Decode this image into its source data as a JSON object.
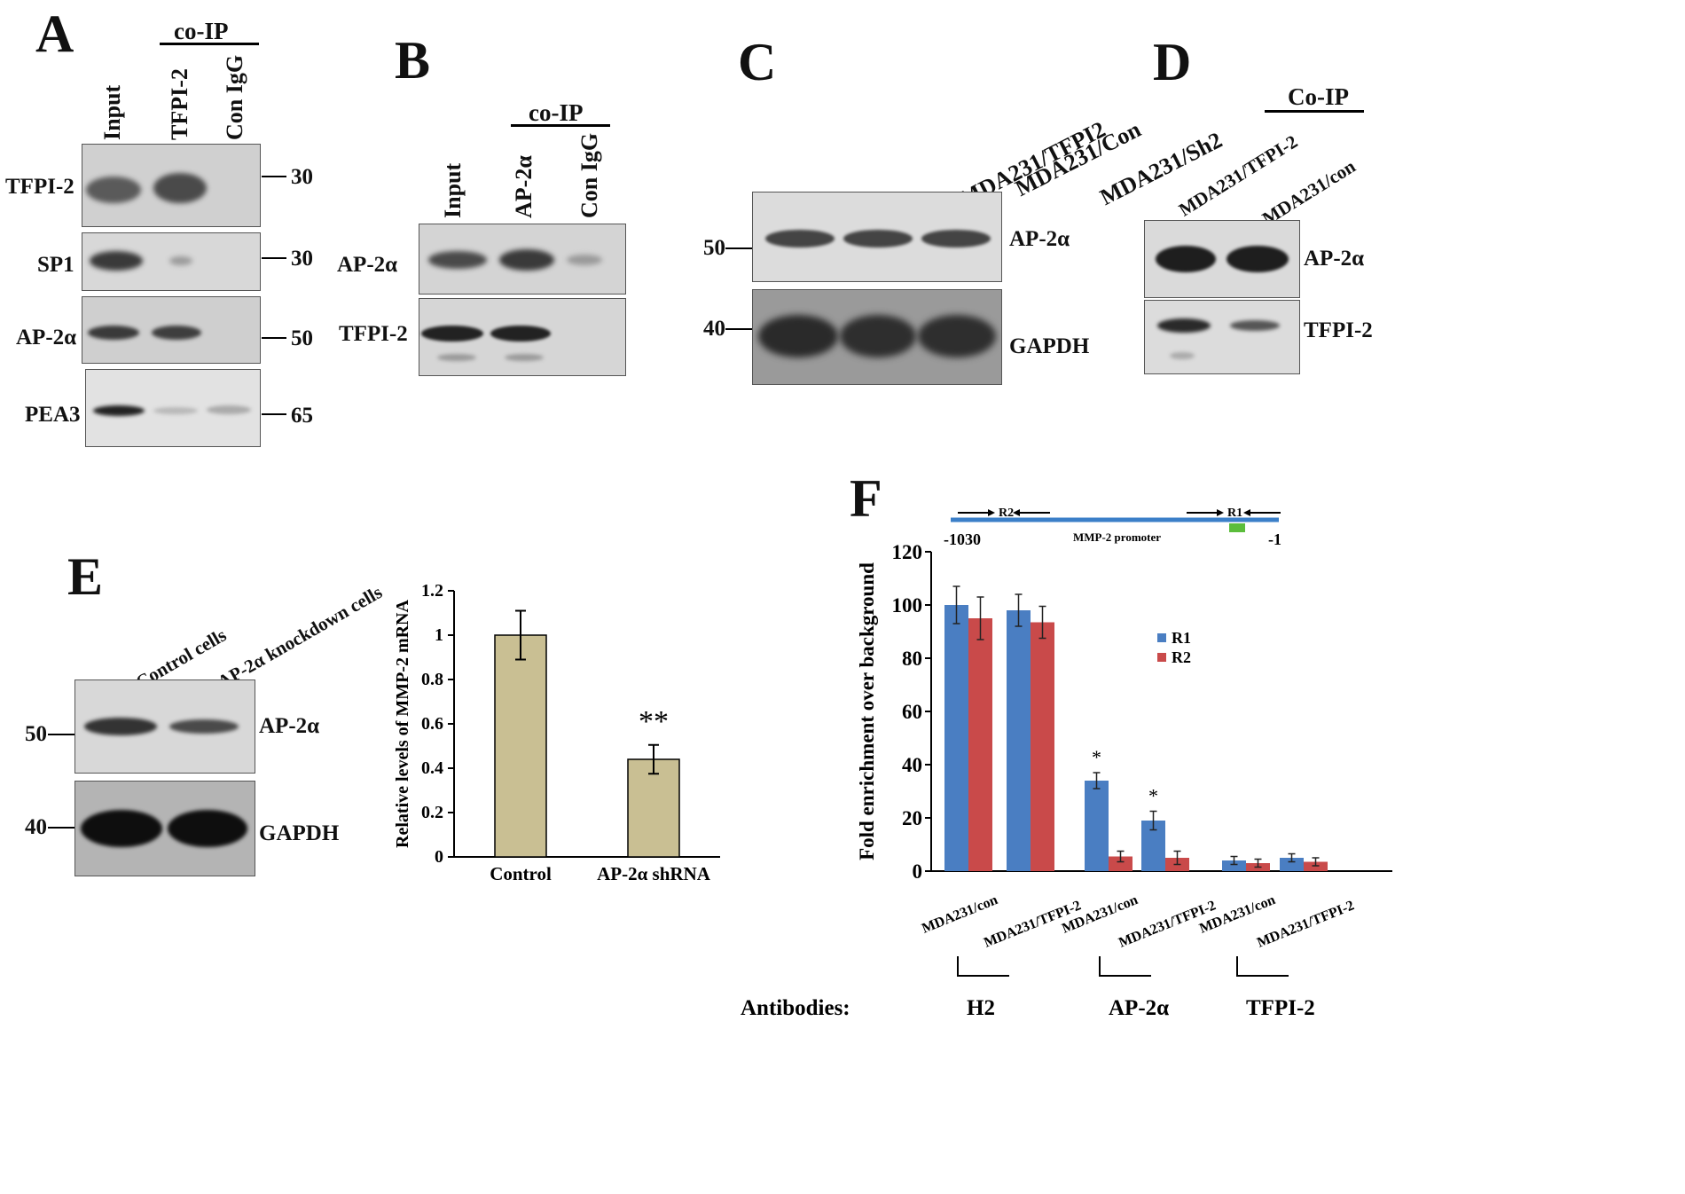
{
  "panels": {
    "A": {
      "label": "A",
      "coip": "co-IP",
      "lanes": [
        "Input",
        "TFPI-2",
        "Con IgG"
      ],
      "rows": [
        {
          "name": "TFPI-2",
          "mw": "30"
        },
        {
          "name": "SP1",
          "mw": "30"
        },
        {
          "name": "AP-2α",
          "mw": "50"
        },
        {
          "name": "PEA3",
          "mw": "65"
        }
      ]
    },
    "B": {
      "label": "B",
      "coip": "co-IP",
      "lanes": [
        "Input",
        "AP-2α",
        "Con IgG"
      ],
      "rows": [
        {
          "name": "AP-2α"
        },
        {
          "name": "TFPI-2"
        }
      ]
    },
    "C": {
      "label": "C",
      "lanes": [
        "MDA231/TFPI2",
        "MDA231/Con",
        "MDA231/Sh2"
      ],
      "rows": [
        {
          "name": "AP-2α",
          "mw": "50"
        },
        {
          "name": "GAPDH",
          "mw": "40"
        }
      ]
    },
    "D": {
      "label": "D",
      "coip": "Co-IP",
      "lanes": [
        "MDA231/TFPI-2",
        "MDA231/con"
      ],
      "rows": [
        {
          "name": "AP-2α"
        },
        {
          "name": "TFPI-2"
        }
      ]
    },
    "E": {
      "label": "E",
      "lanes": [
        "Control cells",
        "AP-2α knockdown cells"
      ],
      "rows": [
        {
          "name": "AP-2α",
          "mw": "50"
        },
        {
          "name": "GAPDH",
          "mw": "40"
        }
      ]
    },
    "F": {
      "label": "F",
      "promoter": {
        "name": "MMP-2 promoter",
        "start": "-1030",
        "end": "-1",
        "r1": "R1",
        "r2": "R2"
      },
      "antibodies_label": "Antibodies:",
      "antibodies": [
        "H2",
        "AP-2α",
        "TFPI-2"
      ]
    }
  },
  "chart_data": [
    {
      "type": "bar",
      "panel": "E",
      "categories": [
        "Control",
        "AP-2α shRNA"
      ],
      "values": [
        1.0,
        0.44
      ],
      "errors": [
        0.11,
        0.065
      ],
      "ylabel": "Relative levels of MMP-2 mRNA",
      "ylim": [
        0,
        1.2
      ],
      "yticks": [
        "0",
        "0.2",
        "0.4",
        "0.6",
        "0.8",
        "1",
        "1.2"
      ],
      "annotations": [
        {
          "category": "AP-2α shRNA",
          "text": "**"
        }
      ],
      "color": "#c9bf93"
    },
    {
      "type": "bar",
      "panel": "F",
      "categories": [
        "MDA231/con",
        "MDA231/TFPI-2",
        "MDA231/con",
        "MDA231/TFPI-2",
        "MDA231/con",
        "MDA231/TFPI-2"
      ],
      "series": [
        {
          "name": "R1",
          "color": "#4a7ec2",
          "values": [
            100,
            98,
            34,
            19,
            4,
            5
          ],
          "errors": [
            7,
            6,
            3,
            3.5,
            1.5,
            1.5
          ]
        },
        {
          "name": "R2",
          "color": "#c94a4a",
          "values": [
            95,
            93.5,
            5.5,
            5,
            3,
            3.5
          ],
          "errors": [
            8,
            6,
            2,
            2.5,
            1.5,
            1.5
          ]
        }
      ],
      "ylabel": "Fold enrichment over background",
      "ylim": [
        0,
        120
      ],
      "yticks": [
        "0",
        "20",
        "40",
        "60",
        "80",
        "100",
        "120"
      ],
      "annotations": [
        {
          "index": 2,
          "text": "*"
        },
        {
          "index": 3,
          "text": "*"
        }
      ],
      "legend": "right"
    }
  ]
}
